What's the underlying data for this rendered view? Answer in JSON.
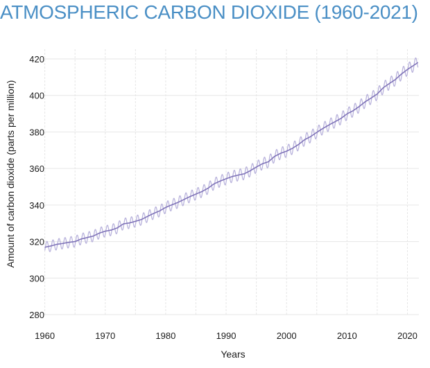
{
  "colors": {
    "title": "#4a8fc5",
    "monthly_line": "#b9b3dc",
    "trend_line": "#7f73b8",
    "grid": "#e6e6e6",
    "text": "#1a1a1a"
  },
  "chart_data": {
    "type": "line",
    "title": "ATMOSPHERIC CARBON DIOXIDE (1960-2021)",
    "xlabel": "Years",
    "ylabel": "Amount of carbon dioxide (parts per million)",
    "xlim": [
      1959.7,
      2021.9
    ],
    "ylim": [
      280,
      430
    ],
    "x_ticks": [
      "1960",
      "1970",
      "1980",
      "1990",
      "2000",
      "2010",
      "2020"
    ],
    "y_ticks": [
      "280",
      "300",
      "320",
      "340",
      "360",
      "380",
      "400",
      "420"
    ],
    "x_grid_step": 5,
    "grid": true,
    "legend": "none",
    "seasonal_amplitude_ppm": 3.0,
    "series": [
      {
        "style": "seasonal monthly values",
        "x": [
          1960,
          1961,
          1962,
          1963,
          1964,
          1965,
          1966,
          1967,
          1968,
          1969,
          1970,
          1971,
          1972,
          1973,
          1974,
          1975,
          1976,
          1977,
          1978,
          1979,
          1980,
          1981,
          1982,
          1983,
          1984,
          1985,
          1986,
          1987,
          1988,
          1989,
          1990,
          1991,
          1992,
          1993,
          1994,
          1995,
          1996,
          1997,
          1998,
          1999,
          2000,
          2001,
          2002,
          2003,
          2004,
          2005,
          2006,
          2007,
          2008,
          2009,
          2010,
          2011,
          2012,
          2013,
          2014,
          2015,
          2016,
          2017,
          2018,
          2019,
          2020,
          2021
        ],
        "values": [
          316.9,
          317.6,
          318.5,
          319.0,
          319.6,
          320.0,
          321.4,
          322.2,
          323.0,
          324.6,
          325.7,
          326.3,
          327.5,
          329.7,
          330.2,
          331.1,
          332.1,
          333.8,
          335.4,
          336.8,
          338.7,
          340.1,
          341.4,
          343.0,
          344.6,
          346.0,
          347.4,
          349.2,
          351.6,
          353.1,
          354.4,
          355.6,
          356.4,
          357.1,
          358.8,
          360.8,
          362.6,
          363.7,
          366.6,
          368.3,
          369.5,
          371.1,
          373.2,
          375.8,
          377.5,
          379.8,
          381.9,
          383.8,
          385.6,
          387.4,
          389.9,
          391.6,
          393.9,
          396.5,
          398.6,
          400.8,
          404.2,
          406.5,
          408.7,
          411.7,
          414.2,
          416.4
        ]
      },
      {
        "style": "smoothed trend",
        "x": [
          1960,
          1961,
          1962,
          1963,
          1964,
          1965,
          1966,
          1967,
          1968,
          1969,
          1970,
          1971,
          1972,
          1973,
          1974,
          1975,
          1976,
          1977,
          1978,
          1979,
          1980,
          1981,
          1982,
          1983,
          1984,
          1985,
          1986,
          1987,
          1988,
          1989,
          1990,
          1991,
          1992,
          1993,
          1994,
          1995,
          1996,
          1997,
          1998,
          1999,
          2000,
          2001,
          2002,
          2003,
          2004,
          2005,
          2006,
          2007,
          2008,
          2009,
          2010,
          2011,
          2012,
          2013,
          2014,
          2015,
          2016,
          2017,
          2018,
          2019,
          2020,
          2021
        ],
        "values": [
          316.9,
          317.6,
          318.5,
          319.0,
          319.6,
          320.0,
          321.4,
          322.2,
          323.0,
          324.6,
          325.7,
          326.3,
          327.5,
          329.7,
          330.2,
          331.1,
          332.1,
          333.8,
          335.4,
          336.8,
          338.7,
          340.1,
          341.4,
          343.0,
          344.6,
          346.0,
          347.4,
          349.2,
          351.6,
          353.1,
          354.4,
          355.6,
          356.4,
          357.1,
          358.8,
          360.8,
          362.6,
          363.7,
          366.6,
          368.3,
          369.5,
          371.1,
          373.2,
          375.8,
          377.5,
          379.8,
          381.9,
          383.8,
          385.6,
          387.4,
          389.9,
          391.6,
          393.9,
          396.5,
          398.6,
          400.8,
          404.2,
          406.5,
          408.7,
          411.7,
          414.2,
          416.4
        ]
      }
    ]
  }
}
